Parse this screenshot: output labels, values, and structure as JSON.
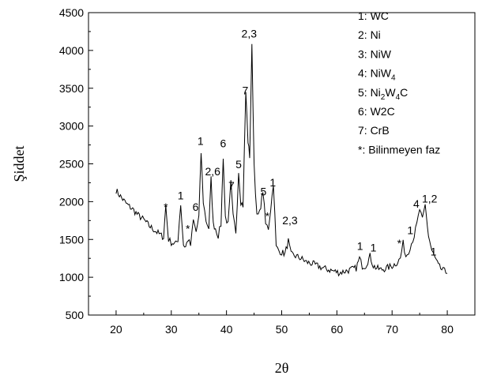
{
  "chart_data": {
    "type": "line",
    "title": "",
    "xlabel": "2θ",
    "ylabel": "Şiddet",
    "xlim": [
      15,
      85
    ],
    "ylim": [
      500,
      4500
    ],
    "x_ticks": [
      20,
      30,
      40,
      50,
      60,
      70,
      80
    ],
    "x_tick_labels": [
      "20",
      "30",
      "40",
      "50",
      "60",
      "70",
      "80"
    ],
    "y_ticks": [
      500,
      1000,
      1500,
      2000,
      2500,
      3000,
      3500,
      4000,
      4500
    ],
    "y_tick_labels": [
      "500",
      "1000",
      "1500",
      "2000",
      "2500",
      "3000",
      "3500",
      "4000",
      "4500"
    ],
    "grid": false,
    "legend_position": "top-right",
    "legend": [
      {
        "key": "1",
        "text": "1: WC"
      },
      {
        "key": "2",
        "text": "2: Ni"
      },
      {
        "key": "3",
        "text": "3: NiW"
      },
      {
        "key": "4",
        "base": "4: NiW",
        "sub": "4",
        "tail": ""
      },
      {
        "key": "5",
        "base": "5: Ni",
        "sub": "2",
        "mid": "W",
        "sub2": "4",
        "tail": "C"
      },
      {
        "key": "6",
        "text": "6: W2C"
      },
      {
        "key": "7",
        "text": "7: CrB"
      },
      {
        "key": "*",
        "text": "*: Bilinmeyen faz"
      }
    ],
    "series": [
      {
        "x": [
          20,
          21,
          22,
          23,
          24,
          25,
          26,
          27,
          28,
          28.6,
          29,
          29.5,
          30,
          30.8,
          31.2,
          31.7,
          32.2,
          32.6,
          33.0,
          33.5,
          34.0,
          34.5,
          35.0,
          35.4,
          35.8,
          36.3,
          36.8,
          37.2,
          37.6,
          38.0,
          38.5,
          39.0,
          39.4,
          39.8,
          40.3,
          40.8,
          41.2,
          41.7,
          42.2,
          42.6,
          43.0,
          43.5,
          43.9,
          44.2,
          44.6,
          45.0,
          45.5,
          46.0,
          46.6,
          47.1,
          47.6,
          48.0,
          48.5,
          49.0,
          49.5,
          50.0,
          50.6,
          51.2,
          51.7,
          52.5,
          53.5,
          54.5,
          55.5,
          56.5,
          57.5,
          58.5,
          59.5,
          60.5,
          61.5,
          62.5,
          63.5,
          64.1,
          64.6,
          65.2,
          66.0,
          66.6,
          67.2,
          68.0,
          69.0,
          70.0,
          71.0,
          71.5,
          72.0,
          72.5,
          73.0,
          73.5,
          74.0,
          74.5,
          75.0,
          75.5,
          76.0,
          76.6,
          77.2,
          77.8,
          78.4,
          79.0,
          79.5,
          80.0
        ],
        "y": [
          2150,
          2050,
          1960,
          1900,
          1820,
          1760,
          1680,
          1620,
          1560,
          1530,
          1950,
          1500,
          1460,
          1440,
          1500,
          1970,
          1430,
          1400,
          1500,
          1420,
          1750,
          1600,
          1800,
          2650,
          2000,
          1750,
          1650,
          2300,
          1700,
          1650,
          1550,
          1700,
          2600,
          1800,
          1700,
          2250,
          1800,
          1600,
          2400,
          2000,
          1950,
          3450,
          2800,
          2600,
          4050,
          2500,
          1800,
          1850,
          2150,
          1700,
          1650,
          1900,
          2250,
          1400,
          1350,
          1330,
          1310,
          1480,
          1300,
          1280,
          1250,
          1200,
          1180,
          1150,
          1120,
          1100,
          1080,
          1060,
          1080,
          1100,
          1120,
          1250,
          1150,
          1150,
          1280,
          1150,
          1120,
          1100,
          1120,
          1150,
          1200,
          1250,
          1450,
          1280,
          1350,
          1450,
          1550,
          1700,
          1900,
          1750,
          1950,
          1550,
          1350,
          1250,
          1150,
          1100,
          1080,
          1050
        ]
      }
    ],
    "peak_annotations": [
      {
        "text": "*",
        "x": 29.0,
        "y": 1880
      },
      {
        "text": "1",
        "x": 31.7,
        "y": 2030
      },
      {
        "text": "*",
        "x": 33.0,
        "y": 1590
      },
      {
        "text": "6",
        "x": 34.4,
        "y": 1880
      },
      {
        "text": "1",
        "x": 35.3,
        "y": 2750
      },
      {
        "text": "2,6",
        "x": 37.5,
        "y": 2350
      },
      {
        "text": "6",
        "x": 39.4,
        "y": 2720
      },
      {
        "text": "7",
        "x": 40.9,
        "y": 2160
      },
      {
        "text": "5",
        "x": 42.2,
        "y": 2440
      },
      {
        "text": "7",
        "x": 43.4,
        "y": 3420
      },
      {
        "text": "2,3",
        "x": 44.1,
        "y": 4170
      },
      {
        "text": "5",
        "x": 46.7,
        "y": 2080
      },
      {
        "text": "*",
        "x": 47.4,
        "y": 1760
      },
      {
        "text": "1",
        "x": 48.4,
        "y": 2200
      },
      {
        "text": "2,3",
        "x": 51.5,
        "y": 1700
      },
      {
        "text": "1",
        "x": 64.2,
        "y": 1360
      },
      {
        "text": "1",
        "x": 66.6,
        "y": 1340
      },
      {
        "text": "*",
        "x": 71.3,
        "y": 1400
      },
      {
        "text": "1",
        "x": 73.3,
        "y": 1570
      },
      {
        "text": "4",
        "x": 74.4,
        "y": 1920
      },
      {
        "text": "1,2",
        "x": 76.8,
        "y": 1990
      },
      {
        "text": "1",
        "x": 77.5,
        "y": 1290
      }
    ]
  },
  "colors": {
    "axis": "#000000",
    "line": "#000000",
    "background": "#ffffff"
  }
}
